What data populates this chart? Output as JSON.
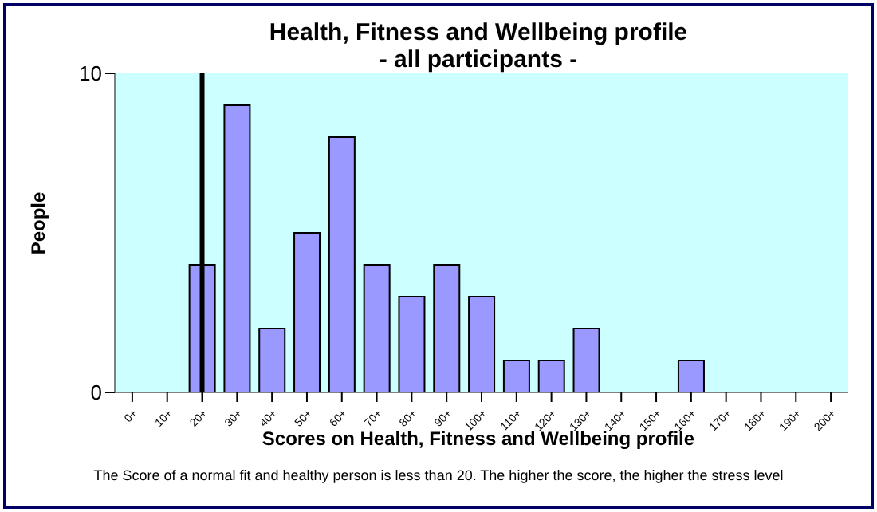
{
  "chart_data": {
    "type": "bar",
    "title": "Health, Fitness and Wellbeing profile",
    "subtitle": "- all participants -",
    "xlabel": "Scores on Health, Fitness and Wellbeing profile",
    "ylabel": "People",
    "categories": [
      "0+",
      "10+",
      "20+",
      "30+",
      "40+",
      "50+",
      "60+",
      "70+",
      "80+",
      "90+",
      "100+",
      "110+",
      "120+",
      "130+",
      "140+",
      "150+",
      "160+",
      "170+",
      "180+",
      "190+",
      "200+"
    ],
    "values": [
      0,
      0,
      4,
      9,
      2,
      5,
      8,
      4,
      3,
      4,
      3,
      1,
      1,
      2,
      0,
      0,
      1,
      0,
      0,
      0,
      0
    ],
    "color": "#9999ff",
    "ylim": [
      0,
      10
    ],
    "yticks": [
      0,
      10
    ],
    "ref_lines": [
      {
        "axis": "x",
        "value": "20+",
        "color": "#000000"
      }
    ],
    "annotations": [
      "The Score of a normal fit and healthy person is less than 20.  The higher the score, the higher the stress level"
    ]
  }
}
